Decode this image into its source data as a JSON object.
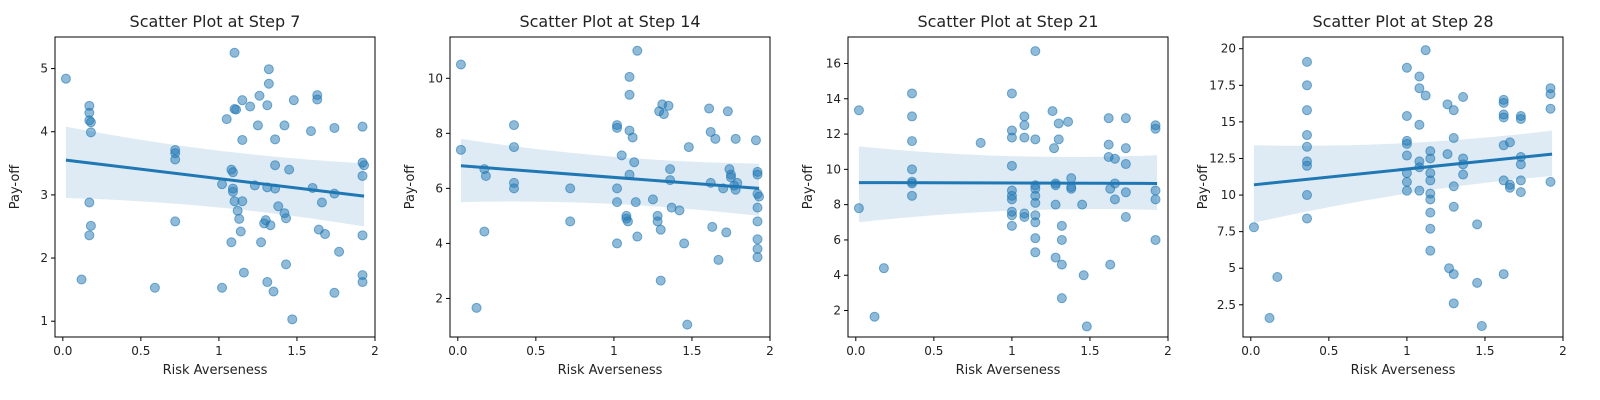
{
  "chart_data": [
    {
      "type": "scatter",
      "title": "Scatter Plot at Step 7",
      "xlabel": "Risk Averseness",
      "ylabel": "Pay-off",
      "xlim": [
        -0.05,
        2.0
      ],
      "ylim": [
        0.75,
        5.5
      ],
      "xticks": [
        0.0,
        0.5,
        1.0,
        1.5,
        2.0
      ],
      "yticks": [
        1,
        2,
        3,
        4,
        5
      ],
      "grid": false,
      "regression": {
        "x": [
          0.02,
          1.93
        ],
        "y": [
          3.55,
          2.98
        ],
        "ci_lower": [
          2.95,
          2.5
        ],
        "ci_upper": [
          4.08,
          3.5
        ]
      },
      "points": [
        [
          0.02,
          4.84
        ],
        [
          0.12,
          1.66
        ],
        [
          0.17,
          4.41
        ],
        [
          0.17,
          4.3
        ],
        [
          0.17,
          4.18
        ],
        [
          0.18,
          4.15
        ],
        [
          0.18,
          3.99
        ],
        [
          0.17,
          2.88
        ],
        [
          0.18,
          2.51
        ],
        [
          0.17,
          2.36
        ],
        [
          0.59,
          1.53
        ],
        [
          0.72,
          3.71
        ],
        [
          0.72,
          3.66
        ],
        [
          0.72,
          3.56
        ],
        [
          0.72,
          2.58
        ],
        [
          1.02,
          3.17
        ],
        [
          1.02,
          1.53
        ],
        [
          1.05,
          4.2
        ],
        [
          1.08,
          2.25
        ],
        [
          1.08,
          3.4
        ],
        [
          1.09,
          3.36
        ],
        [
          1.09,
          3.1
        ],
        [
          1.09,
          3.05
        ],
        [
          1.1,
          4.36
        ],
        [
          1.11,
          4.35
        ],
        [
          1.1,
          5.25
        ],
        [
          1.1,
          2.9
        ],
        [
          1.12,
          2.75
        ],
        [
          1.13,
          2.62
        ],
        [
          1.15,
          4.5
        ],
        [
          1.15,
          3.87
        ],
        [
          1.15,
          2.9
        ],
        [
          1.14,
          2.42
        ],
        [
          1.16,
          1.77
        ],
        [
          1.2,
          4.4
        ],
        [
          1.23,
          3.15
        ],
        [
          1.25,
          4.1
        ],
        [
          1.26,
          4.57
        ],
        [
          1.27,
          2.25
        ],
        [
          1.29,
          2.55
        ],
        [
          1.3,
          2.6
        ],
        [
          1.31,
          1.62
        ],
        [
          1.32,
          4.99
        ],
        [
          1.32,
          4.76
        ],
        [
          1.31,
          4.42
        ],
        [
          1.31,
          3.12
        ],
        [
          1.33,
          2.52
        ],
        [
          1.35,
          1.47
        ],
        [
          1.36,
          3.88
        ],
        [
          1.36,
          3.47
        ],
        [
          1.36,
          3.1
        ],
        [
          1.38,
          2.82
        ],
        [
          1.42,
          4.1
        ],
        [
          1.42,
          2.71
        ],
        [
          1.43,
          2.63
        ],
        [
          1.43,
          1.9
        ],
        [
          1.45,
          3.4
        ],
        [
          1.47,
          1.03
        ],
        [
          1.48,
          4.5
        ],
        [
          1.59,
          4.01
        ],
        [
          1.6,
          3.11
        ],
        [
          1.63,
          4.58
        ],
        [
          1.63,
          4.51
        ],
        [
          1.64,
          2.45
        ],
        [
          1.66,
          2.88
        ],
        [
          1.68,
          2.38
        ],
        [
          1.74,
          4.06
        ],
        [
          1.74,
          3.02
        ],
        [
          1.74,
          1.45
        ],
        [
          1.77,
          2.1
        ],
        [
          1.92,
          4.08
        ],
        [
          1.92,
          3.51
        ],
        [
          1.93,
          3.47
        ],
        [
          1.92,
          3.3
        ],
        [
          1.92,
          2.36
        ],
        [
          1.92,
          1.73
        ],
        [
          1.92,
          1.62
        ]
      ]
    },
    {
      "type": "scatter",
      "title": "Scatter Plot at Step 14",
      "xlabel": "Risk Averseness",
      "ylabel": "Pay-off",
      "xlim": [
        -0.05,
        2.0
      ],
      "ylim": [
        0.6,
        11.5
      ],
      "xticks": [
        0.0,
        0.5,
        1.0,
        1.5,
        2.0
      ],
      "yticks": [
        2,
        4,
        6,
        8,
        10
      ],
      "grid": false,
      "regression": {
        "x": [
          0.02,
          1.93
        ],
        "y": [
          6.82,
          6.0
        ],
        "ci_lower": [
          5.5,
          5.0
        ],
        "ci_upper": [
          7.8,
          6.9
        ]
      },
      "points": [
        [
          0.02,
          10.5
        ],
        [
          0.02,
          7.4
        ],
        [
          0.12,
          1.66
        ],
        [
          0.17,
          6.7
        ],
        [
          0.18,
          6.45
        ],
        [
          0.17,
          4.43
        ],
        [
          0.36,
          8.3
        ],
        [
          0.36,
          7.5
        ],
        [
          0.36,
          6.2
        ],
        [
          0.36,
          6.0
        ],
        [
          0.72,
          6.0
        ],
        [
          0.72,
          4.8
        ],
        [
          1.02,
          8.2
        ],
        [
          1.02,
          8.3
        ],
        [
          1.02,
          6.0
        ],
        [
          1.02,
          5.5
        ],
        [
          1.02,
          4.0
        ],
        [
          1.05,
          7.2
        ],
        [
          1.08,
          4.9
        ],
        [
          1.08,
          5.0
        ],
        [
          1.09,
          4.8
        ],
        [
          1.1,
          6.5
        ],
        [
          1.1,
          8.1
        ],
        [
          1.1,
          9.4
        ],
        [
          1.1,
          10.05
        ],
        [
          1.12,
          7.85
        ],
        [
          1.13,
          6.95
        ],
        [
          1.14,
          5.5
        ],
        [
          1.15,
          4.25
        ],
        [
          1.15,
          11.0
        ],
        [
          1.25,
          5.6
        ],
        [
          1.28,
          4.8
        ],
        [
          1.28,
          5.0
        ],
        [
          1.29,
          8.8
        ],
        [
          1.3,
          2.65
        ],
        [
          1.3,
          4.5
        ],
        [
          1.31,
          9.05
        ],
        [
          1.32,
          8.7
        ],
        [
          1.35,
          9.0
        ],
        [
          1.36,
          6.7
        ],
        [
          1.36,
          6.3
        ],
        [
          1.37,
          5.3
        ],
        [
          1.42,
          5.2
        ],
        [
          1.45,
          4.0
        ],
        [
          1.47,
          1.05
        ],
        [
          1.48,
          7.5
        ],
        [
          1.61,
          8.9
        ],
        [
          1.62,
          8.05
        ],
        [
          1.62,
          6.2
        ],
        [
          1.63,
          4.6
        ],
        [
          1.65,
          7.8
        ],
        [
          1.67,
          3.4
        ],
        [
          1.7,
          6.0
        ],
        [
          1.72,
          4.4
        ],
        [
          1.73,
          8.8
        ],
        [
          1.74,
          6.7
        ],
        [
          1.75,
          6.5
        ],
        [
          1.75,
          6.4
        ],
        [
          1.77,
          6.1
        ],
        [
          1.78,
          5.95
        ],
        [
          1.78,
          7.8
        ],
        [
          1.79,
          6.2
        ],
        [
          1.91,
          7.75
        ],
        [
          1.92,
          6.6
        ],
        [
          1.92,
          6.5
        ],
        [
          1.92,
          5.8
        ],
        [
          1.93,
          5.7
        ],
        [
          1.92,
          5.3
        ],
        [
          1.92,
          4.8
        ],
        [
          1.92,
          4.15
        ],
        [
          1.92,
          3.8
        ],
        [
          1.92,
          3.5
        ]
      ]
    },
    {
      "type": "scatter",
      "title": "Scatter Plot at Step 21",
      "xlabel": "Risk Averseness",
      "ylabel": "Pay-off",
      "xlim": [
        -0.05,
        2.0
      ],
      "ylim": [
        0.5,
        17.5
      ],
      "xticks": [
        0.0,
        0.5,
        1.0,
        1.5,
        2.0
      ],
      "yticks": [
        2,
        4,
        6,
        8,
        10,
        12,
        14,
        16
      ],
      "grid": false,
      "regression": {
        "x": [
          0.02,
          1.93
        ],
        "y": [
          9.25,
          9.2
        ],
        "ci_lower": [
          7.0,
          7.7
        ],
        "ci_upper": [
          11.3,
          10.8
        ]
      },
      "points": [
        [
          0.02,
          13.35
        ],
        [
          0.02,
          7.8
        ],
        [
          0.12,
          1.65
        ],
        [
          0.18,
          4.4
        ],
        [
          0.36,
          14.3
        ],
        [
          0.36,
          13.0
        ],
        [
          0.36,
          11.6
        ],
        [
          0.36,
          10.0
        ],
        [
          0.36,
          9.3
        ],
        [
          0.36,
          9.2
        ],
        [
          0.36,
          8.5
        ],
        [
          0.8,
          11.5
        ],
        [
          1.0,
          14.3
        ],
        [
          1.0,
          12.2
        ],
        [
          1.0,
          11.8
        ],
        [
          1.0,
          10.2
        ],
        [
          1.0,
          8.8
        ],
        [
          1.0,
          8.5
        ],
        [
          1.0,
          8.3
        ],
        [
          1.0,
          7.6
        ],
        [
          1.0,
          7.4
        ],
        [
          1.0,
          6.8
        ],
        [
          1.08,
          13.0
        ],
        [
          1.08,
          12.5
        ],
        [
          1.08,
          11.8
        ],
        [
          1.08,
          7.5
        ],
        [
          1.08,
          7.3
        ],
        [
          1.15,
          16.7
        ],
        [
          1.15,
          11.7
        ],
        [
          1.15,
          9.1
        ],
        [
          1.15,
          8.9
        ],
        [
          1.15,
          8.5
        ],
        [
          1.15,
          8.1
        ],
        [
          1.15,
          7.4
        ],
        [
          1.15,
          7.0
        ],
        [
          1.15,
          6.1
        ],
        [
          1.15,
          5.3
        ],
        [
          1.26,
          13.3
        ],
        [
          1.27,
          11.2
        ],
        [
          1.28,
          9.2
        ],
        [
          1.28,
          9.1
        ],
        [
          1.28,
          8.0
        ],
        [
          1.28,
          5.0
        ],
        [
          1.3,
          12.6
        ],
        [
          1.3,
          11.7
        ],
        [
          1.32,
          6.8
        ],
        [
          1.32,
          6.0
        ],
        [
          1.32,
          4.6
        ],
        [
          1.32,
          2.7
        ],
        [
          1.36,
          12.7
        ],
        [
          1.38,
          9.5
        ],
        [
          1.38,
          9.0
        ],
        [
          1.38,
          8.9
        ],
        [
          1.45,
          8.0
        ],
        [
          1.46,
          4.0
        ],
        [
          1.48,
          1.1
        ],
        [
          1.62,
          12.9
        ],
        [
          1.62,
          11.4
        ],
        [
          1.62,
          10.7
        ],
        [
          1.63,
          8.9
        ],
        [
          1.63,
          4.6
        ],
        [
          1.66,
          10.6
        ],
        [
          1.66,
          9.2
        ],
        [
          1.66,
          8.3
        ],
        [
          1.73,
          12.9
        ],
        [
          1.73,
          11.2
        ],
        [
          1.73,
          10.3
        ],
        [
          1.73,
          8.7
        ],
        [
          1.73,
          7.3
        ],
        [
          1.92,
          12.5
        ],
        [
          1.92,
          12.3
        ],
        [
          1.92,
          8.8
        ],
        [
          1.92,
          8.3
        ],
        [
          1.92,
          6.0
        ]
      ]
    },
    {
      "type": "scatter",
      "title": "Scatter Plot at Step 28",
      "xlabel": "Risk Averseness",
      "ylabel": "Pay-off",
      "xlim": [
        -0.05,
        2.0
      ],
      "ylim": [
        0.3,
        20.8
      ],
      "xticks": [
        0.0,
        0.5,
        1.0,
        1.5,
        2.0
      ],
      "yticks": [
        2.5,
        5.0,
        7.5,
        10.0,
        12.5,
        15.0,
        17.5,
        20.0
      ],
      "grid": false,
      "regression": {
        "x": [
          0.02,
          1.93
        ],
        "y": [
          10.7,
          12.8
        ],
        "ci_lower": [
          8.1,
          11.3
        ],
        "ci_upper": [
          13.4,
          14.4
        ]
      },
      "points": [
        [
          0.02,
          7.8
        ],
        [
          0.12,
          1.6
        ],
        [
          0.17,
          4.4
        ],
        [
          0.36,
          19.1
        ],
        [
          0.36,
          17.5
        ],
        [
          0.36,
          15.8
        ],
        [
          0.36,
          14.1
        ],
        [
          0.36,
          13.3
        ],
        [
          0.36,
          12.3
        ],
        [
          0.36,
          12.0
        ],
        [
          0.36,
          10.0
        ],
        [
          0.36,
          8.4
        ],
        [
          1.0,
          18.7
        ],
        [
          1.0,
          15.4
        ],
        [
          1.0,
          13.7
        ],
        [
          1.0,
          13.5
        ],
        [
          1.0,
          12.7
        ],
        [
          1.0,
          11.5
        ],
        [
          1.0,
          10.9
        ],
        [
          1.0,
          10.3
        ],
        [
          1.08,
          18.1
        ],
        [
          1.08,
          17.3
        ],
        [
          1.08,
          14.8
        ],
        [
          1.08,
          12.3
        ],
        [
          1.08,
          11.9
        ],
        [
          1.08,
          10.3
        ],
        [
          1.12,
          16.8
        ],
        [
          1.12,
          19.9
        ],
        [
          1.15,
          13.0
        ],
        [
          1.15,
          12.5
        ],
        [
          1.15,
          11.5
        ],
        [
          1.15,
          11.0
        ],
        [
          1.15,
          10.1
        ],
        [
          1.15,
          9.7
        ],
        [
          1.15,
          8.8
        ],
        [
          1.15,
          7.7
        ],
        [
          1.15,
          6.2
        ],
        [
          1.26,
          16.2
        ],
        [
          1.26,
          12.8
        ],
        [
          1.27,
          5.0
        ],
        [
          1.3,
          4.6
        ],
        [
          1.3,
          2.6
        ],
        [
          1.3,
          15.8
        ],
        [
          1.3,
          13.9
        ],
        [
          1.3,
          10.6
        ],
        [
          1.3,
          9.2
        ],
        [
          1.36,
          16.7
        ],
        [
          1.36,
          12.5
        ],
        [
          1.36,
          12.1
        ],
        [
          1.36,
          11.4
        ],
        [
          1.45,
          8.0
        ],
        [
          1.45,
          4.0
        ],
        [
          1.48,
          1.05
        ],
        [
          1.62,
          16.5
        ],
        [
          1.62,
          16.3
        ],
        [
          1.62,
          15.5
        ],
        [
          1.62,
          15.3
        ],
        [
          1.62,
          13.4
        ],
        [
          1.62,
          11.0
        ],
        [
          1.62,
          4.6
        ],
        [
          1.66,
          13.6
        ],
        [
          1.66,
          10.7
        ],
        [
          1.66,
          10.5
        ],
        [
          1.73,
          15.4
        ],
        [
          1.73,
          15.2
        ],
        [
          1.73,
          12.6
        ],
        [
          1.73,
          12.1
        ],
        [
          1.73,
          11.0
        ],
        [
          1.73,
          10.2
        ],
        [
          1.92,
          17.3
        ],
        [
          1.92,
          16.9
        ],
        [
          1.92,
          15.9
        ],
        [
          1.92,
          10.9
        ]
      ]
    }
  ]
}
